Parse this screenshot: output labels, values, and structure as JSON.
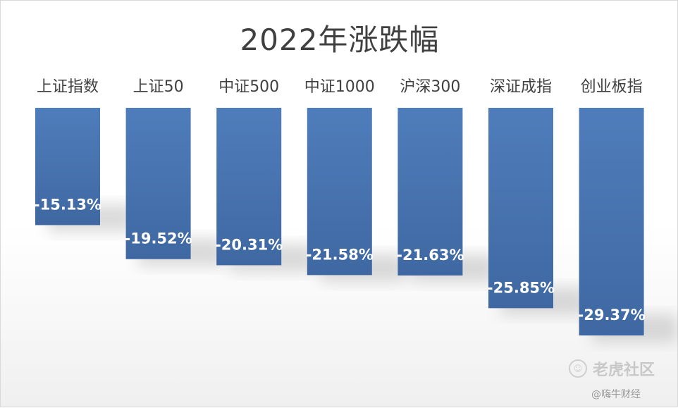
{
  "chart_data": {
    "type": "bar",
    "title": "2022年涨跌幅",
    "categories": [
      "上证指数",
      "上证50",
      "中证500",
      "中证1000",
      "沪深300",
      "深证成指",
      "创业板指"
    ],
    "values": [
      -15.13,
      -19.52,
      -20.31,
      -21.58,
      -21.63,
      -25.85,
      -29.37
    ],
    "value_labels": [
      "-15.13%",
      "-19.52%",
      "-20.31%",
      "-21.58%",
      "-21.63%",
      "-25.85%",
      "-29.37%"
    ],
    "ylim": [
      -30,
      0
    ],
    "grid": false,
    "legend": "none",
    "xlabel": "",
    "ylabel": "",
    "bar_color": "#4a75b0"
  },
  "watermarks": {
    "primary": "老虎社区",
    "secondary": "@嗨牛财经"
  }
}
